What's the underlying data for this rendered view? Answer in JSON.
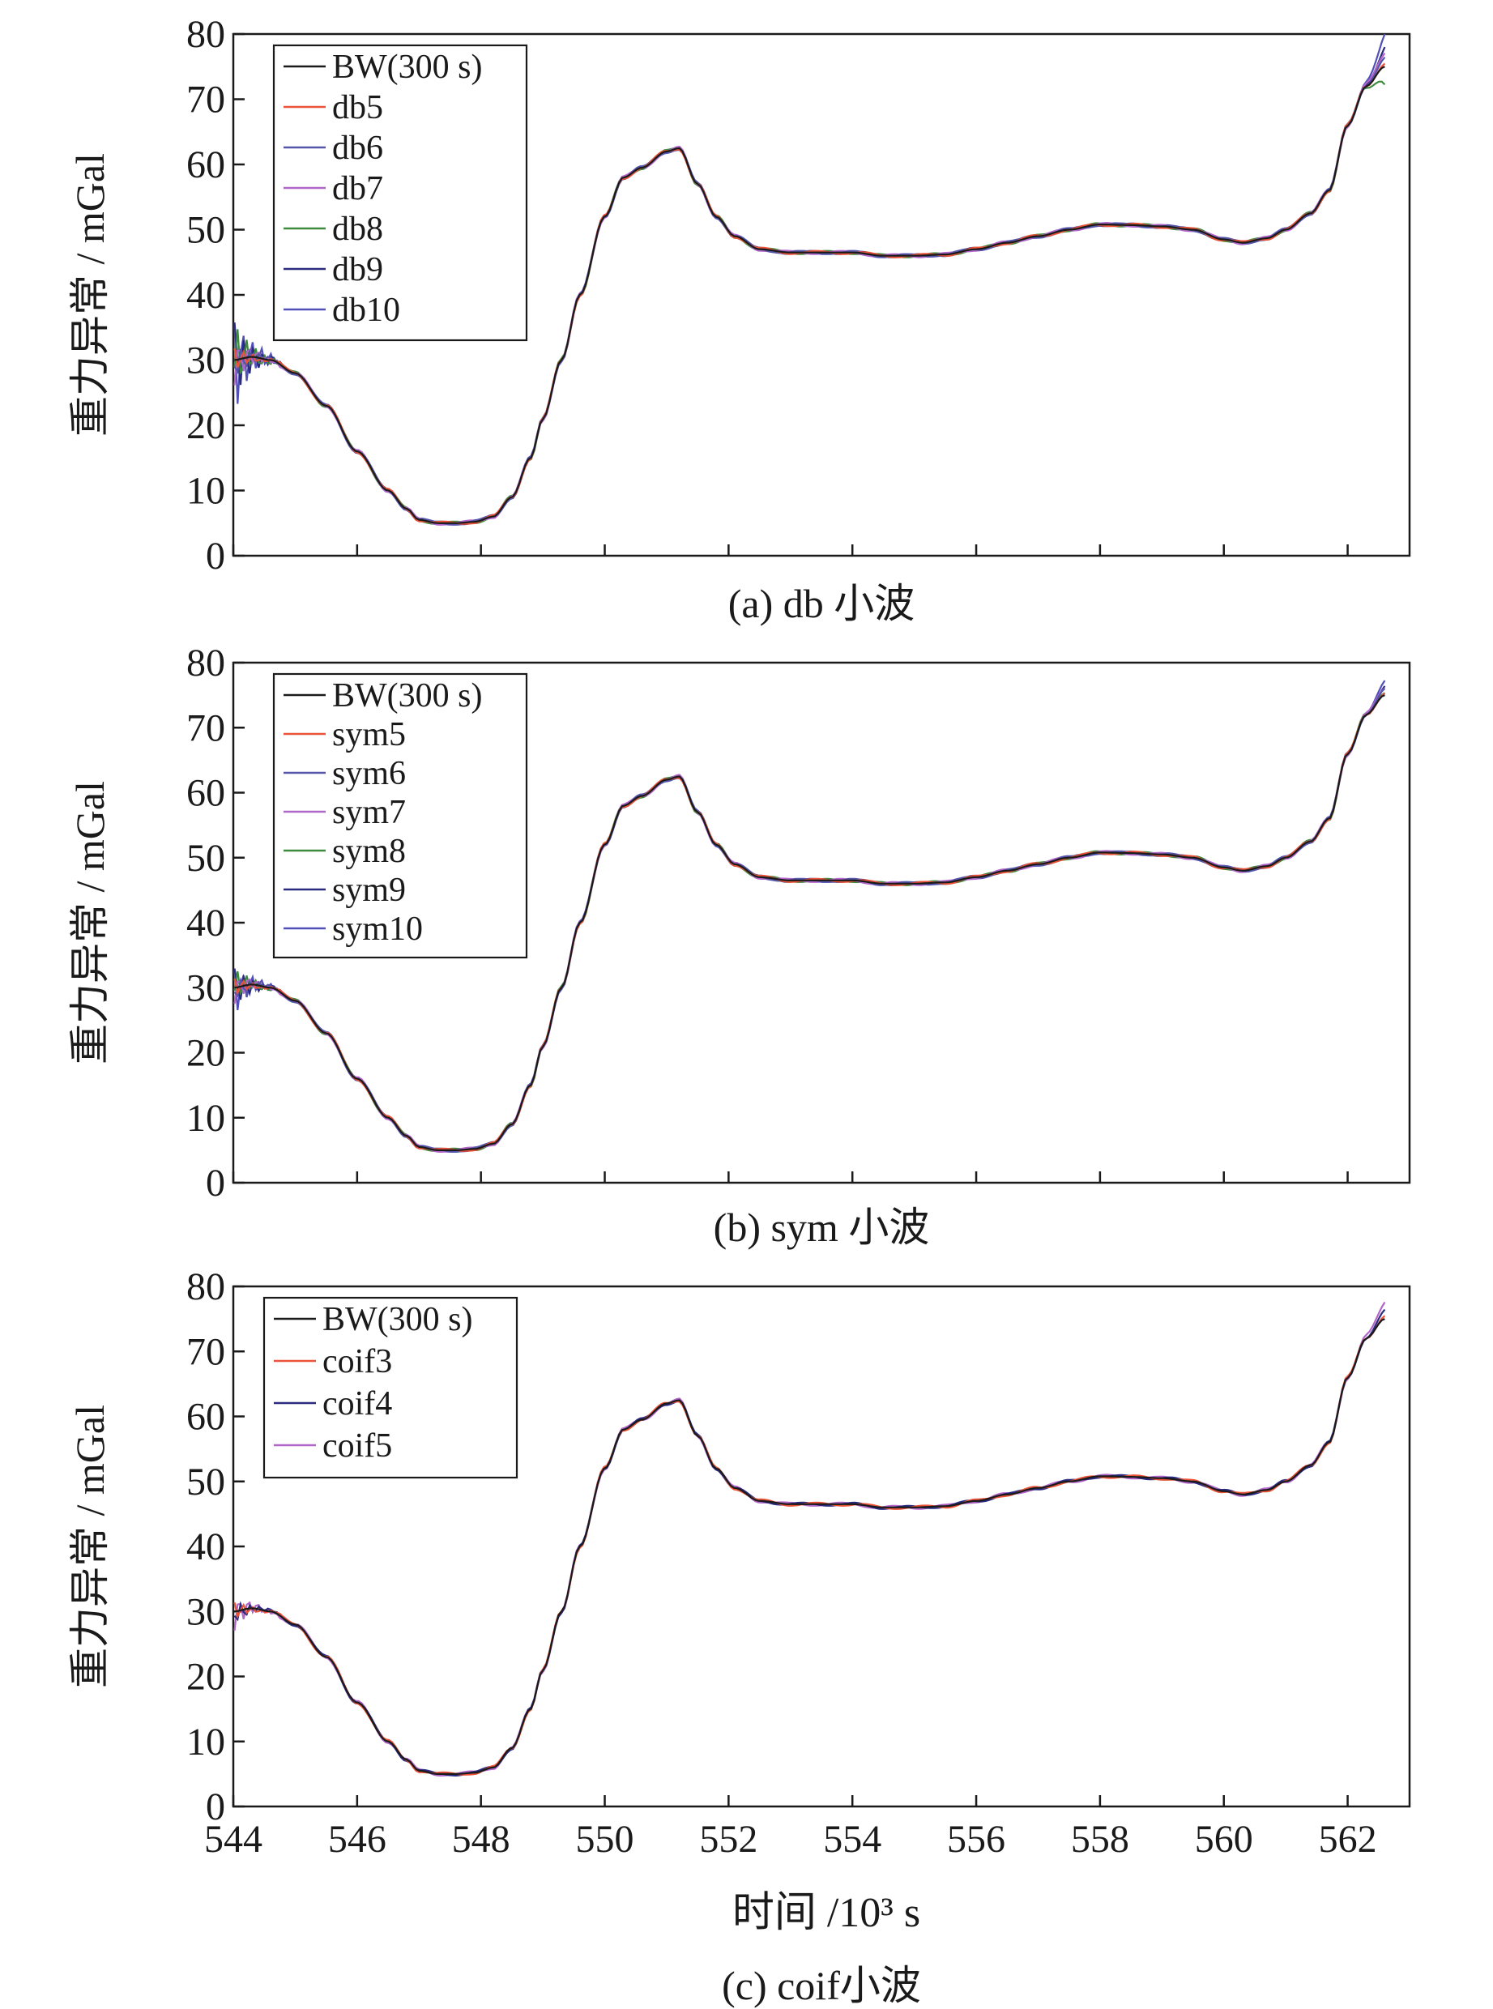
{
  "chart_data": [
    {
      "type": "line",
      "caption": "(a) db 小波",
      "ylabel": "重力异常 / mGal",
      "xlabel": "",
      "xlim": [
        544,
        563
      ],
      "ylim": [
        0,
        80
      ],
      "yticks": [
        0,
        10,
        20,
        30,
        40,
        50,
        60,
        70,
        80
      ],
      "xticks": [
        544,
        546,
        548,
        550,
        552,
        554,
        556,
        558,
        560,
        562
      ],
      "show_xtick_labels": false,
      "grid": false,
      "legend_position": "top-left",
      "series": [
        {
          "name": "BW(300 s)",
          "color": "#1a1a1a",
          "start_amp": 0,
          "end_dev": 0
        },
        {
          "name": "db5",
          "color": "#e8533a",
          "start_amp": 2,
          "end_dev": 0.6
        },
        {
          "name": "db6",
          "color": "#5555aa",
          "start_amp": 3,
          "end_dev": 1.2
        },
        {
          "name": "db7",
          "color": "#b066c8",
          "start_amp": 4,
          "end_dev": 2
        },
        {
          "name": "db8",
          "color": "#3e8a3e",
          "start_amp": 6,
          "end_dev": -2.5
        },
        {
          "name": "db9",
          "color": "#2a2a80",
          "start_amp": 7,
          "end_dev": 3
        },
        {
          "name": "db10",
          "color": "#5050b8",
          "start_amp": 9,
          "end_dev": 5
        }
      ]
    },
    {
      "type": "line",
      "caption": "(b) sym 小波",
      "ylabel": "重力异常 / mGal",
      "xlabel": "",
      "xlim": [
        544,
        563
      ],
      "ylim": [
        0,
        80
      ],
      "yticks": [
        0,
        10,
        20,
        30,
        40,
        50,
        60,
        70,
        80
      ],
      "xticks": [
        544,
        546,
        548,
        550,
        552,
        554,
        556,
        558,
        560,
        562
      ],
      "show_xtick_labels": false,
      "grid": false,
      "legend_position": "top-left",
      "series": [
        {
          "name": "BW(300 s)",
          "color": "#1a1a1a",
          "start_amp": 0,
          "end_dev": 0
        },
        {
          "name": "sym5",
          "color": "#e8533a",
          "start_amp": 1.5,
          "end_dev": 0.4
        },
        {
          "name": "sym6",
          "color": "#5555aa",
          "start_amp": 2,
          "end_dev": 0.8
        },
        {
          "name": "sym7",
          "color": "#b066c8",
          "start_amp": 2.5,
          "end_dev": 1.0
        },
        {
          "name": "sym8",
          "color": "#3e8a3e",
          "start_amp": 3,
          "end_dev": 0.6
        },
        {
          "name": "sym9",
          "color": "#2a2a80",
          "start_amp": 3.5,
          "end_dev": 1.4
        },
        {
          "name": "sym10",
          "color": "#5050b8",
          "start_amp": 4.5,
          "end_dev": 2.0
        }
      ]
    },
    {
      "type": "line",
      "caption": "(c) coif小波",
      "ylabel": "重力异常 / mGal",
      "xlabel": "时间 /10³ s",
      "xlim": [
        544,
        563
      ],
      "ylim": [
        0,
        80
      ],
      "yticks": [
        0,
        10,
        20,
        30,
        40,
        50,
        60,
        70,
        80
      ],
      "xticks": [
        544,
        546,
        548,
        550,
        552,
        554,
        556,
        558,
        560,
        562
      ],
      "show_xtick_labels": true,
      "grid": false,
      "legend_position": "top-left",
      "series": [
        {
          "name": "BW(300 s)",
          "color": "#1a1a1a",
          "start_amp": 0,
          "end_dev": 0
        },
        {
          "name": "coif3",
          "color": "#e8533a",
          "start_amp": 1.5,
          "end_dev": 0.6
        },
        {
          "name": "coif4",
          "color": "#2a2a80",
          "start_amp": 2,
          "end_dev": 1.2
        },
        {
          "name": "coif5",
          "color": "#b066c8",
          "start_amp": 3,
          "end_dev": 2.5
        }
      ]
    }
  ],
  "base_profile": {
    "x": [
      544.0,
      544.3,
      544.6,
      545.0,
      545.5,
      546.0,
      546.5,
      546.8,
      547.0,
      547.3,
      547.6,
      547.9,
      548.2,
      548.5,
      548.8,
      549.0,
      549.3,
      549.6,
      550.0,
      550.3,
      550.6,
      551.0,
      551.2,
      551.5,
      551.8,
      552.1,
      552.5,
      553.0,
      553.5,
      554.0,
      554.5,
      555.0,
      555.5,
      556.0,
      556.5,
      557.0,
      557.5,
      558.0,
      558.5,
      559.0,
      559.5,
      560.0,
      560.3,
      560.7,
      561.0,
      561.4,
      561.7,
      562.0,
      562.3,
      562.6
    ],
    "y": [
      30,
      30.5,
      30,
      28,
      23,
      16,
      10,
      7.2,
      5.5,
      5,
      5,
      5.2,
      6,
      9,
      15,
      21,
      30,
      40,
      52,
      58,
      59.5,
      62,
      62.5,
      57,
      52,
      49,
      47,
      46.5,
      46.5,
      46.5,
      46,
      46,
      46.2,
      47,
      48,
      49,
      50,
      50.8,
      50.7,
      50.5,
      50,
      48.5,
      48,
      48.7,
      50,
      52.5,
      56,
      66,
      72,
      75
    ]
  }
}
